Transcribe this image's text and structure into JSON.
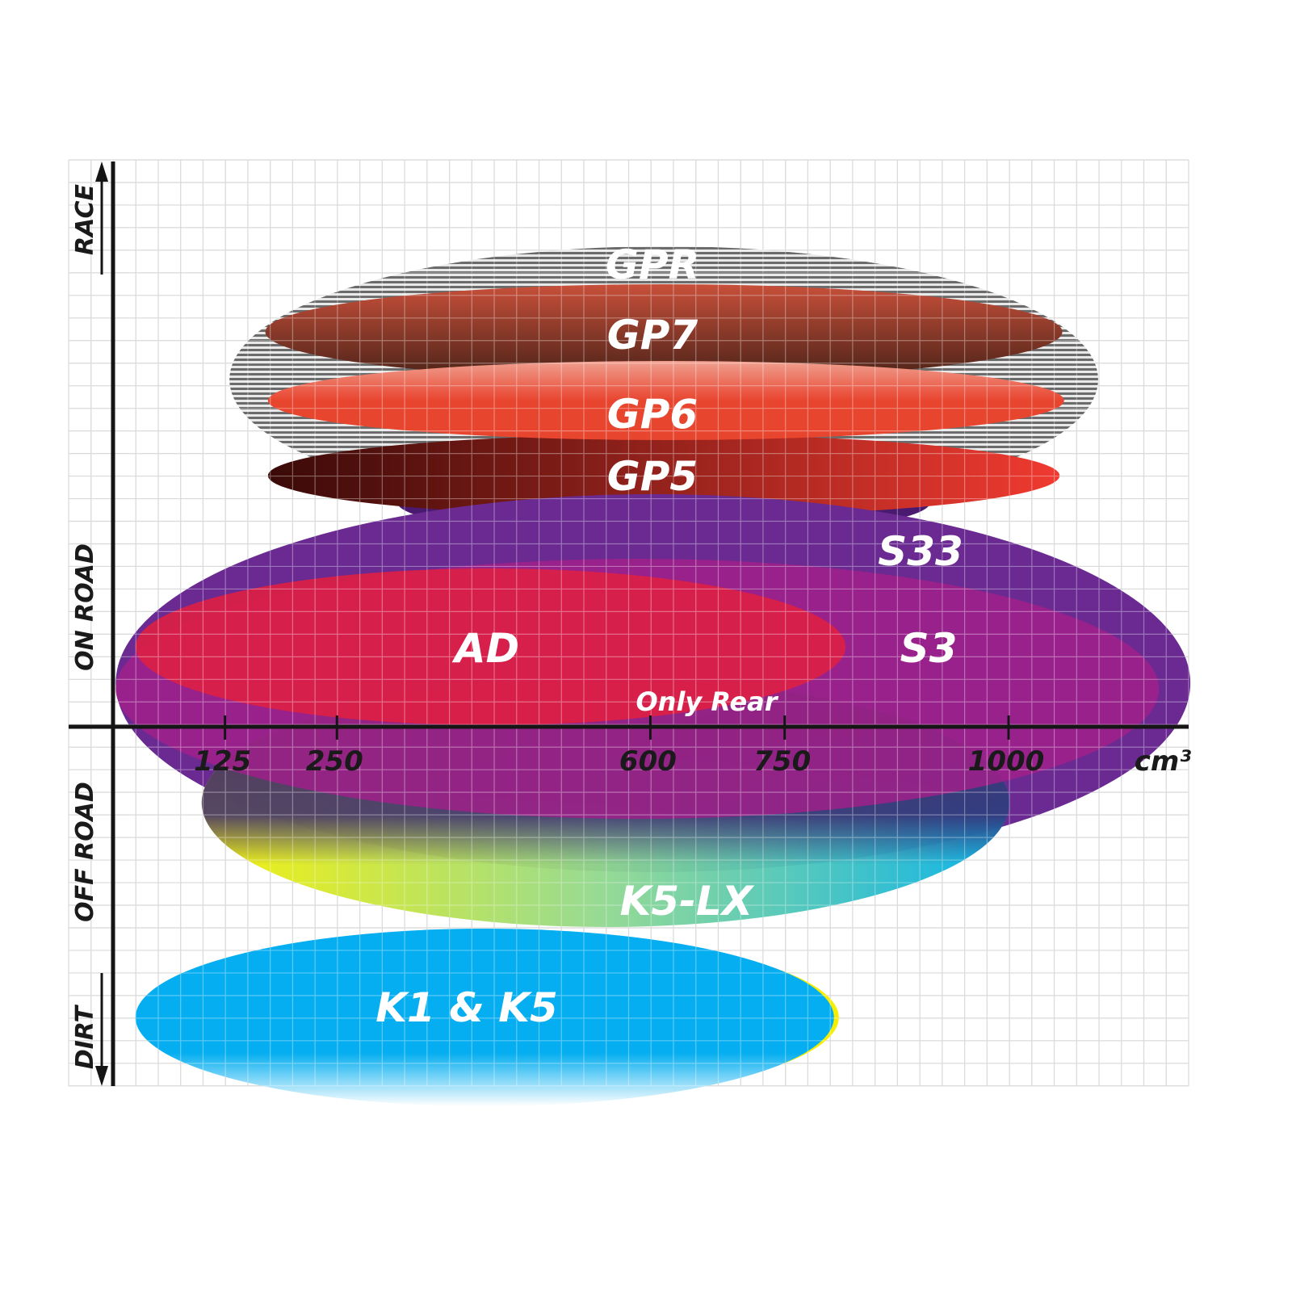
{
  "chart_data": {
    "type": "range-ellipse",
    "title": "",
    "xlabel": "cm³",
    "xticks": [
      125,
      250,
      600,
      750,
      1000
    ],
    "xlim": [
      0,
      1230
    ],
    "y_axis_labels": [
      "RACE",
      "ON ROAD",
      "OFF ROAD",
      "DIRT"
    ],
    "grid": true,
    "series": [
      {
        "name": "GPR",
        "x_range": [
          130,
          1100
        ],
        "segment": "race",
        "color": "#9a9a9a"
      },
      {
        "name": "GP7",
        "x_range": [
          170,
          1060
        ],
        "segment": "race",
        "color": "#8a3a2a"
      },
      {
        "name": "GP6",
        "x_range": [
          173,
          1062
        ],
        "segment": "race",
        "color": "#e8452f"
      },
      {
        "name": "GP5",
        "x_range": [
          173,
          1057
        ],
        "segment": "race / on road",
        "color": "#b0201a"
      },
      {
        "name": "S33",
        "x_range": [
          3,
          1203
        ],
        "segment": "on road",
        "color": "#6a2a92"
      },
      {
        "name": "S3",
        "x_range": [
          3,
          1168
        ],
        "segment": "on road",
        "color": "#a0208a"
      },
      {
        "name": "AD",
        "x_range": [
          25,
          818
        ],
        "segment": "on road",
        "color": "#dc1f45"
      },
      {
        "name": "K5-LX",
        "x_range": [
          99,
          1001
        ],
        "segment": "on road / off road",
        "color": "#2ab8d8",
        "note": "Only Rear"
      },
      {
        "name": "K1 & K5",
        "x_range": [
          25,
          805
        ],
        "segment": "dirt",
        "color": "#05aef0"
      }
    ],
    "annotation": "Only Rear"
  }
}
